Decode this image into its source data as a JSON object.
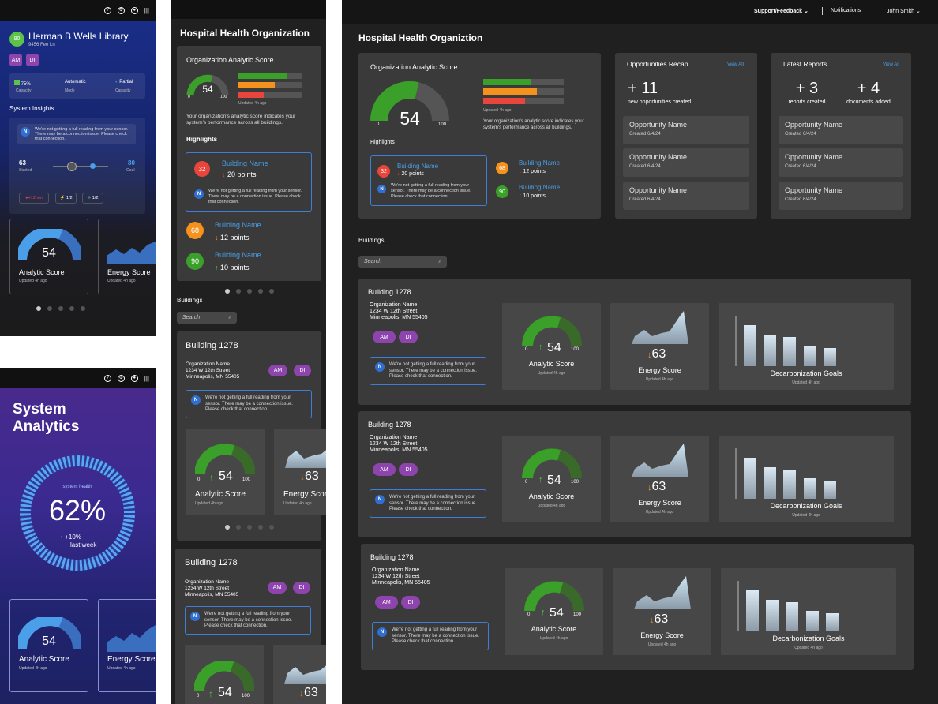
{
  "mobile1": {
    "title": "Herman B Wells Library",
    "address": "9456 Fee Ln",
    "badge": "90",
    "tags": [
      "AM",
      "DI"
    ],
    "stats": [
      {
        "value": "75%",
        "label": "Capacity"
      },
      {
        "value": "Automatic",
        "label": "Mode"
      },
      {
        "value": "Partial",
        "label": "Capacity"
      }
    ],
    "insights_title": "System Insights",
    "alert": "We're not getting a full reading from your sensor. There may be a connection issue. Please check that connection.",
    "slider_start": "63",
    "slider_start_label": "Started",
    "slider_goal": "80",
    "slider_goal_label": "Goal",
    "chips": [
      "+12min",
      "1/2",
      "1/2"
    ],
    "analytic": {
      "value": "54",
      "label": "Analytic Score",
      "updated": "Updated 4h ago"
    },
    "energy": {
      "label": "Energy Score",
      "updated": "Updated 4h ago"
    }
  },
  "mobile2": {
    "title_line1": "System",
    "title_line2": "Analytics",
    "ring_label": "system health",
    "ring_value": "62%",
    "ring_value_num": 62,
    "delta": "+10%",
    "delta_label": "last week",
    "analytic": {
      "value": "54",
      "label": "Analytic Score",
      "updated": "Updated 4h ago"
    },
    "energy": {
      "label": "Energy Score",
      "updated": "Updated 4h ago"
    }
  },
  "tablet": {
    "title": "Hospital Health Organization",
    "score_title": "Organization Analytic Score",
    "score": "54",
    "min": "0",
    "max": "100",
    "updated": "Updated 4h ago",
    "desc": "Your organization's analytic score indicates your system's performance across all buildings.",
    "highlights": "Highlights",
    "h1": {
      "num": "32",
      "name": "Building Name",
      "points": "20 points"
    },
    "h2": {
      "num": "68",
      "name": "Building Name",
      "points": "12 points"
    },
    "h3": {
      "num": "90",
      "name": "Building Name",
      "points": "10 points"
    },
    "alert": "We're not getting a full reading from your sensor. There may be a connection issue. Please check that connection.",
    "buildings": "Buildings",
    "search": "Search",
    "b1": {
      "name": "Building 1278",
      "org": "Organization Name",
      "street": "1234 W 12th Street",
      "city": "Minneapolis, MN 55405",
      "tags": [
        "AM",
        "DI"
      ],
      "score": "54",
      "energy": "63",
      "analytic_label": "Analytic Score",
      "energy_label": "Energy Score",
      "updated": "Updated 4h ago"
    },
    "b2": {
      "name": "Building 1278",
      "org": "Organization Name",
      "street": "1234 W 12th Street",
      "city": "Minneapolis, MN 55405",
      "tags": [
        "AM",
        "DI"
      ],
      "score": "54",
      "energy": "63"
    }
  },
  "desktop": {
    "nav": {
      "support": "Support/Feedback",
      "notifications": "Notifications",
      "user": "John Smith"
    },
    "title": "Hospital Health Organiztion",
    "score_title": "Organization Analytic Score",
    "score": "54",
    "min": "0",
    "max": "100",
    "updated": "Updated 4h ago",
    "desc": "Your organization's analytic score indicates your system's performance across all buildings.",
    "highlights": "Highlights",
    "h1": {
      "num": "32",
      "name": "Building Name",
      "points": "20 points"
    },
    "h2": {
      "num": "68",
      "name": "Building Name",
      "points": "12 points"
    },
    "h3": {
      "num": "90",
      "name": "Building Name",
      "points": "10 points"
    },
    "alert": "We're not getting a full reading from your sensor. There may be a connection issue. Please check that connection.",
    "opp": {
      "title": "Opportunities Recap",
      "view_all": "View All",
      "count": "+ 11",
      "count_label": "new opportunities created",
      "items": [
        {
          "name": "Opportunity Name",
          "date": "Created 6/4/24"
        },
        {
          "name": "Opportunity Name",
          "date": "Created 6/4/24"
        },
        {
          "name": "Opportunity Name",
          "date": "Created 6/4/24"
        }
      ]
    },
    "reports": {
      "title": "Latest Reports",
      "view_all": "View All",
      "reports": "+ 3",
      "reports_label": "reports created",
      "docs": "+ 4",
      "docs_label": "documents added",
      "items": [
        {
          "name": "Opportunity Name",
          "date": "Created 6/4/24"
        },
        {
          "name": "Opportunity Name",
          "date": "Created 6/4/24"
        },
        {
          "name": "Opportunity Name",
          "date": "Created 6/4/24"
        }
      ]
    },
    "buildings": "Buildings",
    "search": "Search",
    "building_cards": [
      {
        "name": "Building 1278",
        "org": "Organization Name",
        "street": "1234 W 12th Street",
        "city": "Minneapolis, MN 55405",
        "tags": [
          "AM",
          "DI"
        ],
        "score": "54",
        "min": "0",
        "max": "100",
        "analytic_label": "Analytic Score",
        "energy": "63",
        "energy_label": "Energy Score",
        "goals_label": "Decarbonization Goals",
        "updated": "Updated 4h ago"
      },
      {
        "name": "Building 1278",
        "org": "Organization Name",
        "street": "1234 W 12th Street",
        "city": "Minneapolis, MN 55405",
        "tags": [
          "AM",
          "DI"
        ],
        "score": "54",
        "min": "0",
        "max": "100",
        "analytic_label": "Analytic Score",
        "energy": "63",
        "energy_label": "Energy Score",
        "goals_label": "Decarbonization Goals",
        "updated": "Updated 4h ago"
      },
      {
        "name": "Building 1278",
        "org": "Organization Name",
        "street": "1234 W 12th Street",
        "city": "Minneapolis, MN 55405",
        "tags": [
          "AM",
          "DI"
        ],
        "score": "54",
        "min": "0",
        "max": "100",
        "analytic_label": "Analytic Score",
        "energy": "63",
        "energy_label": "Energy Score",
        "goals_label": "Decarbonization Goals",
        "updated": "Updated 4h ago"
      }
    ]
  },
  "colors": {
    "green": "#3aa02a",
    "orange": "#f5921e",
    "red": "#e8453c",
    "blue": "#4a9fe8",
    "purple": "#8e44ad"
  }
}
